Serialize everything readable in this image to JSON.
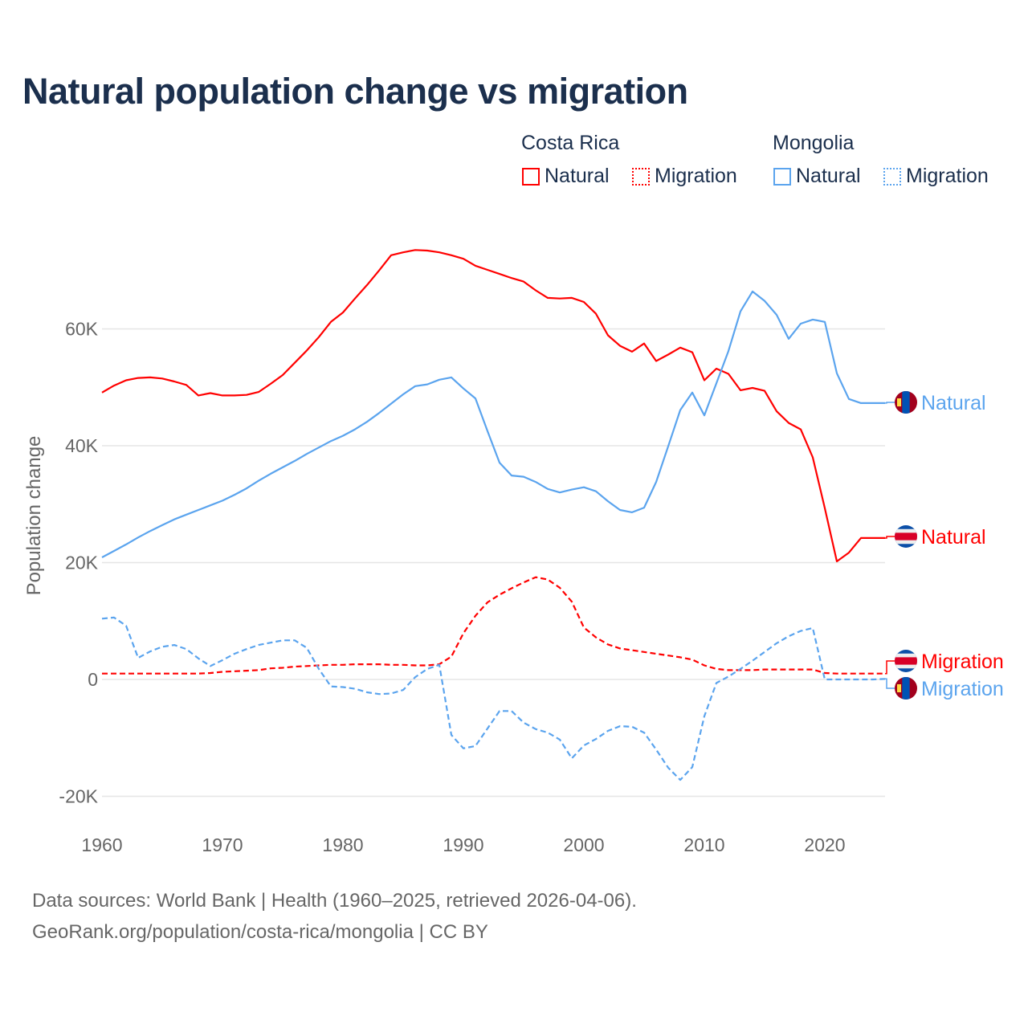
{
  "chart_data": {
    "type": "line",
    "title": "Natural population change vs migration",
    "ylabel": "Population change",
    "xlabel": "",
    "xlim": [
      1960,
      2025
    ],
    "ylim": [
      -20000,
      75000
    ],
    "grid": true,
    "x_ticks": [
      "1960",
      "1970",
      "1980",
      "1990",
      "2000",
      "2010",
      "2020"
    ],
    "y_ticks": [
      {
        "value": -20000,
        "label": "-20K"
      },
      {
        "value": 0,
        "label": "0"
      },
      {
        "value": 20000,
        "label": "20K"
      },
      {
        "value": 40000,
        "label": "40K"
      },
      {
        "value": 60000,
        "label": "60K"
      }
    ],
    "legend": {
      "placement": "top-right",
      "groups": [
        {
          "country": "Costa Rica",
          "items": [
            "Natural",
            "Migration"
          ]
        },
        {
          "country": "Mongolia",
          "items": [
            "Natural",
            "Migration"
          ]
        }
      ]
    },
    "start_year": 1960,
    "series": [
      {
        "name": "Costa Rica Natural",
        "label": "Natural",
        "country": "Costa Rica",
        "color": "#ff0000",
        "dashed": false,
        "values_k": [
          49.1,
          50.3,
          51.2,
          51.6,
          51.7,
          51.5,
          51.0,
          50.4,
          48.6,
          49.0,
          48.6,
          48.6,
          48.7,
          49.2,
          50.6,
          52.1,
          54.2,
          56.3,
          58.6,
          61.2,
          62.8,
          65.2,
          67.5,
          70.0,
          72.6,
          73.1,
          73.5,
          73.4,
          73.1,
          72.6,
          72.0,
          70.8,
          70.1,
          69.4,
          68.7,
          68.1,
          66.6,
          65.3,
          65.2,
          65.3,
          64.6,
          62.6,
          58.9,
          57.1,
          56.1,
          57.5,
          54.5,
          55.6,
          56.8,
          56.0,
          51.2,
          53.2,
          52.3,
          49.5,
          49.9,
          49.4,
          45.9,
          43.9,
          42.8,
          38.0,
          29.3,
          20.2,
          21.7,
          24.2,
          24.2,
          24.2
        ]
      },
      {
        "name": "Costa Rica Migration",
        "label": "Migration",
        "country": "Costa Rica",
        "color": "#ff0000",
        "dashed": true,
        "values_k": [
          1.0,
          1.0,
          1.0,
          1.0,
          1.0,
          1.0,
          1.0,
          1.0,
          1.0,
          1.1,
          1.3,
          1.4,
          1.5,
          1.6,
          1.9,
          2.0,
          2.2,
          2.3,
          2.4,
          2.5,
          2.5,
          2.6,
          2.6,
          2.6,
          2.5,
          2.5,
          2.4,
          2.4,
          2.6,
          3.9,
          7.9,
          10.9,
          13.2,
          14.5,
          15.6,
          16.6,
          17.5,
          17.1,
          15.7,
          13.3,
          8.9,
          7.2,
          6.0,
          5.3,
          5.0,
          4.7,
          4.4,
          4.1,
          3.8,
          3.4,
          2.4,
          1.8,
          1.6,
          1.6,
          1.6,
          1.7,
          1.7,
          1.7,
          1.7,
          1.7,
          1.1,
          1.0,
          1.0,
          1.0,
          1.0,
          1.0
        ]
      },
      {
        "name": "Mongolia Natural",
        "label": "Natural",
        "country": "Mongolia",
        "color": "#5ba4ee",
        "dashed": false,
        "values_k": [
          20.9,
          22.0,
          23.1,
          24.3,
          25.4,
          26.4,
          27.4,
          28.2,
          29.0,
          29.8,
          30.6,
          31.6,
          32.7,
          34.0,
          35.2,
          36.3,
          37.4,
          38.6,
          39.7,
          40.8,
          41.7,
          42.8,
          44.1,
          45.6,
          47.2,
          48.8,
          50.2,
          50.5,
          51.3,
          51.7,
          49.8,
          48.1,
          42.5,
          37.1,
          34.9,
          34.7,
          33.8,
          32.6,
          32.0,
          32.5,
          32.9,
          32.2,
          30.5,
          29.0,
          28.6,
          29.4,
          33.8,
          39.9,
          46.1,
          49.1,
          45.2,
          50.7,
          56.2,
          63.0,
          66.4,
          64.8,
          62.4,
          58.3,
          60.9,
          61.6,
          61.2,
          52.4,
          48.0,
          47.3,
          47.3,
          47.3
        ]
      },
      {
        "name": "Mongolia Migration",
        "label": "Migration",
        "country": "Mongolia",
        "color": "#5ba4ee",
        "dashed": true,
        "values_k": [
          10.4,
          10.6,
          9.2,
          3.7,
          4.8,
          5.6,
          5.9,
          5.2,
          3.6,
          2.3,
          3.3,
          4.4,
          5.2,
          5.9,
          6.3,
          6.7,
          6.7,
          5.4,
          1.8,
          -1.2,
          -1.3,
          -1.6,
          -2.2,
          -2.5,
          -2.4,
          -1.8,
          0.4,
          1.8,
          2.5,
          -9.5,
          -11.8,
          -11.4,
          -8.4,
          -5.4,
          -5.4,
          -7.4,
          -8.5,
          -9.1,
          -10.3,
          -13.5,
          -11.3,
          -10.2,
          -8.8,
          -8.0,
          -8.1,
          -9.1,
          -12.0,
          -15.1,
          -17.2,
          -15.0,
          -6.3,
          -0.6,
          0.5,
          1.8,
          3.2,
          4.7,
          6.2,
          7.4,
          8.3,
          8.8,
          0.0,
          0.0,
          0.0,
          0.0,
          0.0,
          0.1
        ]
      }
    ]
  },
  "footer": {
    "line1": "Data sources: World Bank | Health (1960–2025, retrieved 2026-04-06).",
    "line2": "GeoRank.org/population/costa-rica/mongolia | CC BY"
  }
}
